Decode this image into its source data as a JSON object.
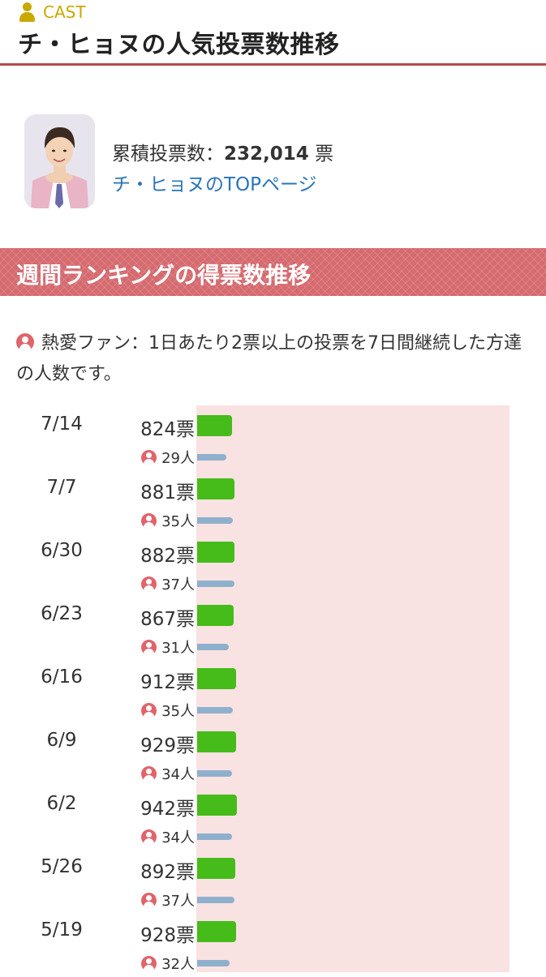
{
  "header": {
    "category_label": "CAST",
    "title": "チ・ヒョヌの人気投票数推移"
  },
  "profile": {
    "total_label": "累積投票数：",
    "total_votes": "232,014",
    "total_unit": "票",
    "top_link": "チ・ヒョヌのTOPページ"
  },
  "section": {
    "title": "週間ランキングの得票数推移",
    "legend": "熱愛ファン：1日あたり2票以上の投票を7日間継続した方達の人数です。"
  },
  "weekly": [
    {
      "date": "7/14",
      "votes": 824,
      "votes_label": "824票",
      "fans": 29,
      "fans_label": "29人"
    },
    {
      "date": "7/7",
      "votes": 881,
      "votes_label": "881票",
      "fans": 35,
      "fans_label": "35人"
    },
    {
      "date": "6/30",
      "votes": 882,
      "votes_label": "882票",
      "fans": 37,
      "fans_label": "37人"
    },
    {
      "date": "6/23",
      "votes": 867,
      "votes_label": "867票",
      "fans": 31,
      "fans_label": "31人"
    },
    {
      "date": "6/16",
      "votes": 912,
      "votes_label": "912票",
      "fans": 35,
      "fans_label": "35人"
    },
    {
      "date": "6/9",
      "votes": 929,
      "votes_label": "929票",
      "fans": 34,
      "fans_label": "34人"
    },
    {
      "date": "6/2",
      "votes": 942,
      "votes_label": "942票",
      "fans": 34,
      "fans_label": "34人"
    },
    {
      "date": "5/26",
      "votes": 892,
      "votes_label": "892票",
      "fans": 37,
      "fans_label": "37人"
    },
    {
      "date": "5/19",
      "votes": 928,
      "votes_label": "928票",
      "fans": 32,
      "fans_label": "32人"
    }
  ],
  "colors": {
    "accent": "#b5494c",
    "category": "#c9a800",
    "link": "#2a74b8",
    "vote_bar": "#45bc19",
    "fan_bar": "#8fb0cc",
    "chart_bg": "#f9e2e2",
    "fan_icon": "#e0646b"
  },
  "icons": {
    "category": "person-icon",
    "fan": "fan-user-icon"
  }
}
